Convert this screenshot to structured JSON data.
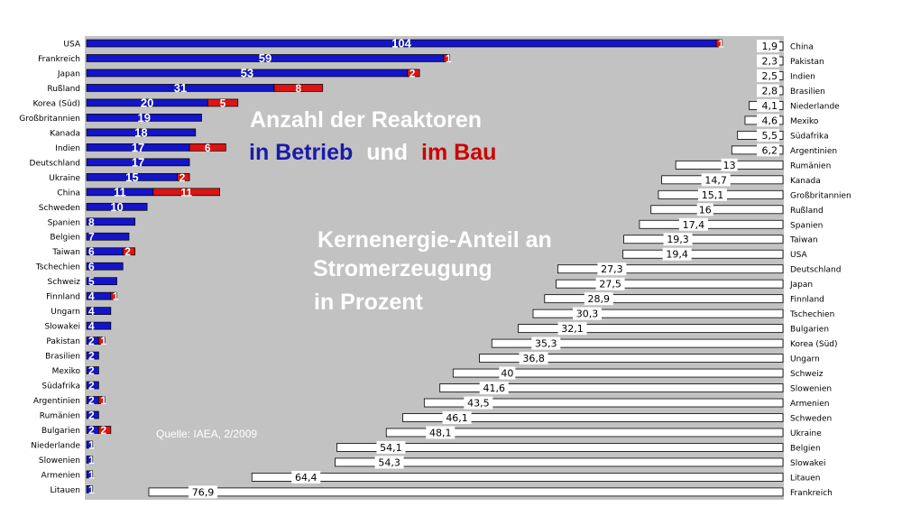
{
  "colors": {
    "panel_gray": "#c2c2c2",
    "operating_blue": "#1414c8",
    "construction_red": "#dc1414",
    "share_bar_fill": "#ffffff",
    "title_white": "#ffffff",
    "title_blue": "#1a1aa8",
    "title_red": "#cc0000"
  },
  "text": {
    "title_line1": "Anzahl der Reaktoren",
    "title_line2_part1": "in Betrieb",
    "title_line2_part2": "und",
    "title_line2_part3": "im Bau",
    "subtitle_line1": "Kernenergie-Anteil an",
    "subtitle_line2": "Stromerzeugung",
    "subtitle_line3": "in Prozent",
    "source": "Quelle: IAEA, 2/2009"
  },
  "chart_data": [
    {
      "type": "bar",
      "orientation": "horizontal",
      "stacked": true,
      "categories": [
        "USA",
        "Frankreich",
        "Japan",
        "Rußland",
        "Korea (Süd)",
        "Großbritannien",
        "Kanada",
        "Indien",
        "Deutschland",
        "Ukraine",
        "China",
        "Schweden",
        "Spanien",
        "Belgien",
        "Taiwan",
        "Tschechien",
        "Schweiz",
        "Finnland",
        "Ungarn",
        "Slowakei",
        "Pakistan",
        "Brasilien",
        "Mexiko",
        "Südafrika",
        "Argentinien",
        "Rumänien",
        "Bulgarien",
        "Niederlande",
        "Slowenien",
        "Armenien",
        "Litauen"
      ],
      "series": [
        {
          "name": "in Betrieb",
          "color": "#1414c8",
          "values": [
            104,
            59,
            53,
            31,
            20,
            19,
            18,
            17,
            17,
            15,
            11,
            10,
            8,
            7,
            6,
            6,
            5,
            4,
            4,
            4,
            2,
            2,
            2,
            2,
            2,
            2,
            2,
            1,
            1,
            1,
            1
          ]
        },
        {
          "name": "im Bau",
          "color": "#dc1414",
          "values": [
            1,
            1,
            2,
            8,
            5,
            0,
            0,
            6,
            0,
            2,
            11,
            0,
            0,
            0,
            2,
            0,
            0,
            1,
            0,
            0,
            1,
            0,
            0,
            0,
            1,
            0,
            2,
            0,
            0,
            0,
            0
          ]
        }
      ]
    },
    {
      "type": "bar",
      "orientation": "horizontal",
      "categories": [
        "China",
        "Pakistan",
        "Indien",
        "Brasilien",
        "Niederlande",
        "Mexiko",
        "Südafrika",
        "Argentinien",
        "Rumänien",
        "Kanada",
        "Großbritannien",
        "Rußland",
        "Spanien",
        "Taiwan",
        "USA",
        "Deutschland",
        "Japan",
        "Finnland",
        "Tschechien",
        "Bulgarien",
        "Korea (Süd)",
        "Ungarn",
        "Schweiz",
        "Slowenien",
        "Armenien",
        "Schweden",
        "Ukraine",
        "Belgien",
        "Slowakei",
        "Litauen",
        "Frankreich"
      ],
      "values": [
        "1,9",
        "2,3",
        "2,5",
        "2,8",
        "4,1",
        "4,6",
        "5,5",
        "6,2",
        "13",
        "14,7",
        "15,1",
        "16",
        "17,4",
        "19,3",
        "19,4",
        "27,3",
        "27,5",
        "28,9",
        "30,3",
        "32,1",
        "35,3",
        "36,8",
        "40",
        "41,6",
        "43,5",
        "46,1",
        "48,1",
        "54,1",
        "54,3",
        "64,4",
        "76,9"
      ]
    }
  ]
}
